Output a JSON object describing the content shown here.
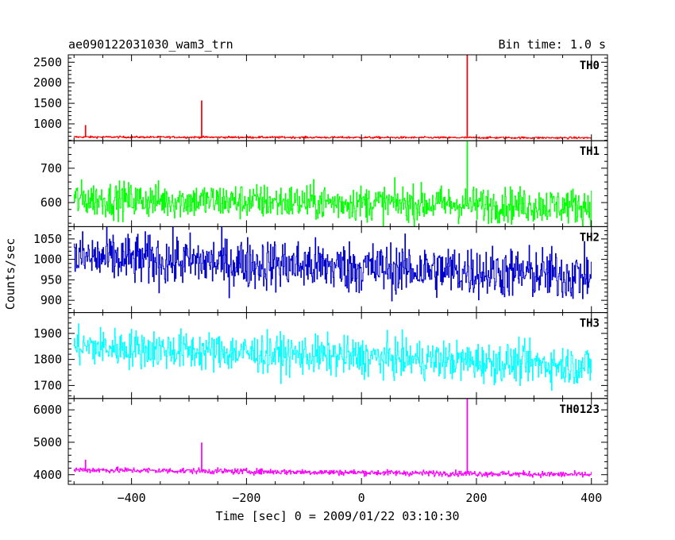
{
  "chart_data": {
    "type": "line",
    "title": "ae090122031030_wam3_trn",
    "bin_time_label": "Bin time: 1.0 s",
    "xlabel": "Time [sec] 0 = 2009/01/22 03:10:30",
    "ylabel": "Counts/sec",
    "xlim": [
      -510,
      428
    ],
    "xticks": [
      -400,
      -200,
      0,
      200,
      400
    ],
    "x_data_range": [
      -500,
      400
    ],
    "bin_seconds": 1.0,
    "grid": false,
    "legend": "none",
    "panels": [
      {
        "name": "TH0",
        "color": "#ff0000",
        "ylim": [
          590,
          2680
        ],
        "yticks": [
          1000,
          1500,
          2000,
          2500
        ],
        "baseline_start": 680,
        "baseline_end": 660,
        "noise": 12,
        "spikes": [
          {
            "x": -480,
            "y": 960
          },
          {
            "x": -278,
            "y": 1560
          },
          {
            "x": 184,
            "y": 2680
          }
        ]
      },
      {
        "name": "TH1",
        "color": "#00ff00",
        "ylim": [
          530,
          780
        ],
        "yticks": [
          600,
          700
        ],
        "baseline_start": 610,
        "baseline_end": 590,
        "noise": 26,
        "spikes": [
          {
            "x": 184,
            "y": 780
          }
        ]
      },
      {
        "name": "TH2",
        "color": "#0000cc",
        "ylim": [
          870,
          1080
        ],
        "yticks": [
          900,
          950,
          1000,
          1050
        ],
        "baseline_start": 1005,
        "baseline_end": 960,
        "noise": 32,
        "spikes": []
      },
      {
        "name": "TH3",
        "color": "#00ffff",
        "ylim": [
          1650,
          1980
        ],
        "yticks": [
          1700,
          1800,
          1900
        ],
        "baseline_start": 1850,
        "baseline_end": 1775,
        "noise": 38,
        "spikes": []
      },
      {
        "name": "TH0123",
        "color": "#ff00ff",
        "ylim": [
          3700,
          6350
        ],
        "yticks": [
          4000,
          5000,
          6000
        ],
        "baseline_start": 4150,
        "baseline_end": 4000,
        "noise": 45,
        "spikes": [
          {
            "x": -480,
            "y": 4450
          },
          {
            "x": -278,
            "y": 4980
          },
          {
            "x": 184,
            "y": 6350
          }
        ]
      }
    ]
  }
}
